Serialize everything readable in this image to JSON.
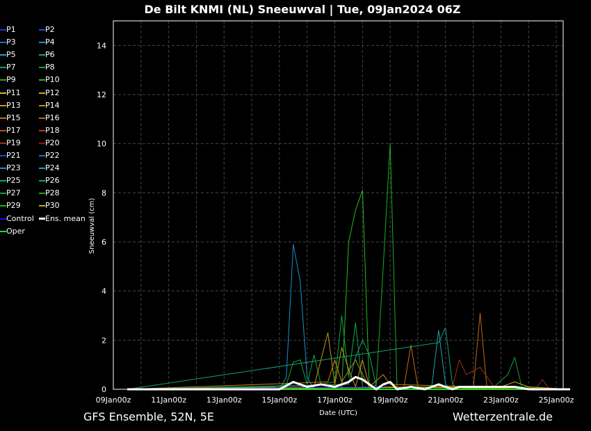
{
  "title": "De Bilt KNMI  (NL)  Sneeuwval | Tue, 09Jan2024 06Z",
  "footer": {
    "left": "GFS Ensemble, 52N, 5E",
    "right": "Wetterzentrale.de"
  },
  "legend": [
    {
      "label": "P1",
      "color": "#2030d0"
    },
    {
      "label": "P2",
      "color": "#2050c8"
    },
    {
      "label": "P3",
      "color": "#1e70c0"
    },
    {
      "label": "P4",
      "color": "#1a90c8"
    },
    {
      "label": "P5",
      "color": "#18a8c0"
    },
    {
      "label": "P6",
      "color": "#10a890"
    },
    {
      "label": "P7",
      "color": "#10a060"
    },
    {
      "label": "P8",
      "color": "#10a840"
    },
    {
      "label": "P9",
      "color": "#18b020"
    },
    {
      "label": "P10",
      "color": "#20c020"
    },
    {
      "label": "P11",
      "color": "#c8c010"
    },
    {
      "label": "P12",
      "color": "#c8b010"
    },
    {
      "label": "P13",
      "color": "#c89a10"
    },
    {
      "label": "P14",
      "color": "#c88a10"
    },
    {
      "label": "P15",
      "color": "#c07010"
    },
    {
      "label": "P16",
      "color": "#c06818"
    },
    {
      "label": "P17",
      "color": "#b05010"
    },
    {
      "label": "P18",
      "color": "#b04018"
    },
    {
      "label": "P19",
      "color": "#a03020"
    },
    {
      "label": "P20",
      "color": "#901818"
    },
    {
      "label": "P21",
      "color": "#2040d0"
    },
    {
      "label": "P22",
      "color": "#1e70c8"
    },
    {
      "label": "P23",
      "color": "#1890c0"
    },
    {
      "label": "P24",
      "color": "#18a8b0"
    },
    {
      "label": "P25",
      "color": "#10a080"
    },
    {
      "label": "P26",
      "color": "#10a868"
    },
    {
      "label": "P27",
      "color": "#10a040"
    },
    {
      "label": "P28",
      "color": "#18a828"
    },
    {
      "label": "P29",
      "color": "#20b010"
    },
    {
      "label": "P30",
      "color": "#c0b010"
    },
    {
      "label": "Control",
      "color": "#1010ff"
    },
    {
      "label": "Ens. mean",
      "color": "#ffffff"
    },
    {
      "label": "Oper",
      "color": "#20e020"
    }
  ],
  "chart_data": {
    "type": "line",
    "xlabel": "Date (UTC)",
    "ylabel": "Sneeuwval (cm)",
    "x_start": "2024-01-09T12",
    "x_end": "2024-01-25T12",
    "xlim": [
      "2024-01-09T00",
      "2024-01-25T06"
    ],
    "ylim": [
      0,
      15
    ],
    "xticks": [
      "09Jan 00z",
      "11Jan 00z",
      "13Jan 00z",
      "15Jan 00z",
      "17Jan 00z",
      "19Jan 00z",
      "21Jan 00z",
      "23Jan 00z",
      "25Jan 00z"
    ],
    "yticks": [
      0,
      2,
      4,
      6,
      8,
      10,
      12,
      14
    ],
    "grid": true,
    "legend_placement": "left-outside",
    "series": [
      {
        "name": "P4",
        "points": [
          [
            "2024-01-15T00",
            0
          ],
          [
            "2024-01-15T06",
            0.5
          ],
          [
            "2024-01-15T12",
            5.9
          ],
          [
            "2024-01-15T18",
            4.4
          ],
          [
            "2024-01-16T00",
            0.5
          ],
          [
            "2024-01-16T06",
            0
          ]
        ]
      },
      {
        "name": "P10",
        "points": [
          [
            "2024-01-17T06",
            0
          ],
          [
            "2024-01-17T12",
            6.0
          ],
          [
            "2024-01-17T18",
            7.3
          ],
          [
            "2024-01-18T00",
            8.1
          ],
          [
            "2024-01-18T06",
            0
          ]
        ]
      },
      {
        "name": "P9",
        "points": [
          [
            "2024-01-18T06",
            0
          ],
          [
            "2024-01-18T12",
            0.2
          ],
          [
            "2024-01-18T18",
            5.0
          ],
          [
            "2024-01-19T00",
            10.0
          ],
          [
            "2024-01-19T06",
            0
          ]
        ]
      },
      {
        "name": "P8",
        "points": [
          [
            "2024-01-14T18",
            0.1
          ],
          [
            "2024-01-15T06",
            0.2
          ],
          [
            "2024-01-15T12",
            1.1
          ],
          [
            "2024-01-15T18",
            1.2
          ],
          [
            "2024-01-16T00",
            0.2
          ],
          [
            "2024-01-16T06",
            1.4
          ],
          [
            "2024-01-16T12",
            0.2
          ],
          [
            "2024-01-17T00",
            0.3
          ],
          [
            "2024-01-17T06",
            3.0
          ],
          [
            "2024-01-17T12",
            0.5
          ],
          [
            "2024-01-17T18",
            2.7
          ],
          [
            "2024-01-18T00",
            0.1
          ]
        ]
      },
      {
        "name": "P26",
        "points": [
          [
            "2024-01-17T12",
            0.2
          ],
          [
            "2024-01-17T18",
            1.3
          ],
          [
            "2024-01-18T00",
            2.0
          ],
          [
            "2024-01-18T06",
            1.4
          ],
          [
            "2024-01-18T12",
            0.1
          ]
        ]
      },
      {
        "name": "P13",
        "points": [
          [
            "2024-01-16T06",
            0.1
          ],
          [
            "2024-01-16T18",
            2.3
          ],
          [
            "2024-01-17T00",
            0.2
          ],
          [
            "2024-01-17T06",
            1.7
          ],
          [
            "2024-01-17T12",
            0.8
          ],
          [
            "2024-01-17T18",
            0.1
          ],
          [
            "2024-01-18T00",
            1.2
          ],
          [
            "2024-01-18T06",
            0.1
          ]
        ]
      },
      {
        "name": "P14",
        "points": [
          [
            "2024-01-16T18",
            0.3
          ],
          [
            "2024-01-17T00",
            1.2
          ],
          [
            "2024-01-17T06",
            0.3
          ],
          [
            "2024-01-17T18",
            1.2
          ],
          [
            "2024-01-18T00",
            0.6
          ],
          [
            "2024-01-18T06",
            0.1
          ],
          [
            "2024-01-18T18",
            0.6
          ],
          [
            "2024-01-19T00",
            0.2
          ]
        ]
      },
      {
        "name": "P15",
        "points": [
          [
            "2024-01-19T12",
            0.1
          ],
          [
            "2024-01-19T18",
            1.8
          ],
          [
            "2024-01-20T00",
            0.1
          ]
        ]
      },
      {
        "name": "P24",
        "points": [
          [
            "2024-01-20T12",
            0.1
          ],
          [
            "2024-01-20T18",
            2.4
          ],
          [
            "2024-01-21T00",
            0.2
          ],
          [
            "2024-01-21T06",
            0
          ]
        ]
      },
      {
        "name": "P25",
        "points": [
          [
            "2024-01-20T18",
            1.9
          ],
          [
            "2024-01-21T00",
            2.5
          ],
          [
            "2024-01-21T06",
            0.2
          ],
          [
            "2024-01-21T12",
            0
          ]
        ]
      },
      {
        "name": "P16",
        "points": [
          [
            "2024-01-22T00",
            0
          ],
          [
            "2024-01-22T06",
            3.1
          ],
          [
            "2024-01-22T12",
            0
          ]
        ]
      },
      {
        "name": "P19",
        "points": [
          [
            "2024-01-21T06",
            0.1
          ],
          [
            "2024-01-21T12",
            1.2
          ],
          [
            "2024-01-21T18",
            0.6
          ],
          [
            "2024-01-22T06",
            0.9
          ],
          [
            "2024-01-22T18",
            0.1
          ],
          [
            "2024-01-24T06",
            0
          ],
          [
            "2024-01-24T12",
            0.4
          ],
          [
            "2024-01-24T18",
            0
          ]
        ]
      },
      {
        "name": "P27",
        "points": [
          [
            "2024-01-22T18",
            0.1
          ],
          [
            "2024-01-23T06",
            0.6
          ],
          [
            "2024-01-23T12",
            1.3
          ],
          [
            "2024-01-23T18",
            0.1
          ]
        ]
      },
      {
        "name": "P30",
        "points": [
          [
            "2024-01-23T00",
            0.1
          ],
          [
            "2024-01-23T12",
            0.3
          ],
          [
            "2024-01-24T00",
            0.1
          ]
        ]
      },
      {
        "name": "Control",
        "points": [
          [
            "2024-01-18T18",
            0.1
          ],
          [
            "2024-01-19T00",
            0.3
          ],
          [
            "2024-01-19T06",
            0
          ]
        ]
      },
      {
        "name": "Ens. mean",
        "points": [
          [
            "2024-01-15T00",
            0
          ],
          [
            "2024-01-15T12",
            0.3
          ],
          [
            "2024-01-16T00",
            0.1
          ],
          [
            "2024-01-16T12",
            0.2
          ],
          [
            "2024-01-17T00",
            0.1
          ],
          [
            "2024-01-17T12",
            0.3
          ],
          [
            "2024-01-17T18",
            0.5
          ],
          [
            "2024-01-18T00",
            0.4
          ],
          [
            "2024-01-18T12",
            0
          ],
          [
            "2024-01-18T18",
            0.2
          ],
          [
            "2024-01-19T00",
            0.3
          ],
          [
            "2024-01-19T06",
            0
          ],
          [
            "2024-01-19T18",
            0.1
          ],
          [
            "2024-01-20T06",
            0
          ],
          [
            "2024-01-20T18",
            0.2
          ],
          [
            "2024-01-21T06",
            0
          ],
          [
            "2024-01-21T12",
            0.1
          ],
          [
            "2024-01-22T06",
            0.1
          ],
          [
            "2024-01-23T12",
            0.1
          ],
          [
            "2024-01-24T00",
            0
          ]
        ]
      },
      {
        "name": "Oper",
        "points": []
      }
    ]
  }
}
